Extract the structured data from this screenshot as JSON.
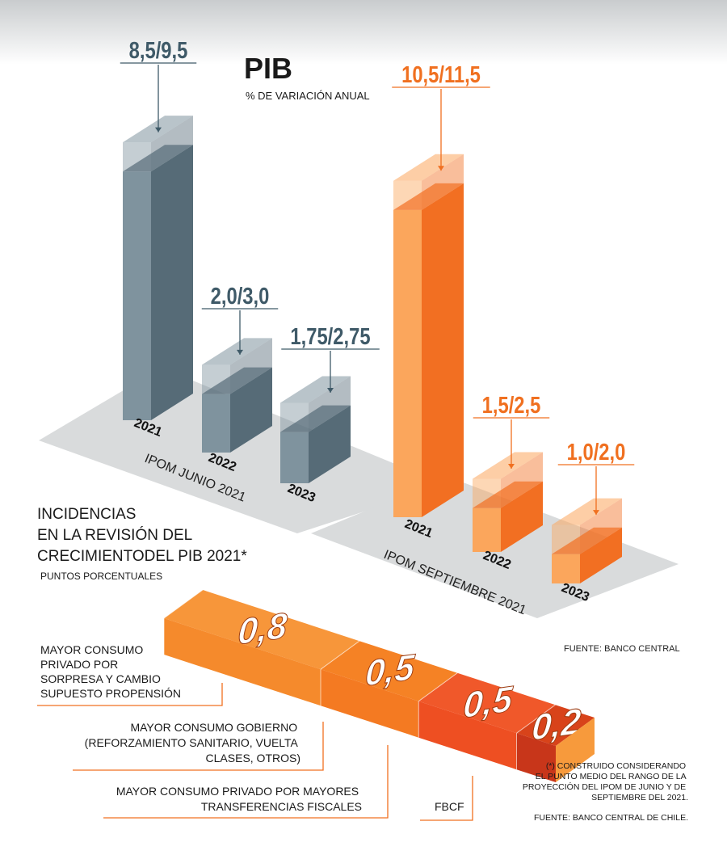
{
  "colors": {
    "junio_front": "#7f939e",
    "junio_side": "#566b77",
    "junio_label": "#3f5a68",
    "sept_front": "#fba65c",
    "sept_side": "#f26f22",
    "sept_label": "#f07020",
    "floor": "#d9dbdc"
  },
  "chart_data": [
    {
      "type": "bar",
      "title": "PIB",
      "subtitle": "% DE VARIACIÓN ANUAL",
      "series": [
        {
          "name": "IPOM JUNIO 2021",
          "categories": [
            "2021",
            "2022",
            "2023"
          ],
          "low": [
            8.5,
            2.0,
            1.75
          ],
          "high": [
            9.5,
            3.0,
            2.75
          ],
          "labels": [
            "8,5/9,5",
            "2,0/3,0",
            "1,75/2,75"
          ]
        },
        {
          "name": "IPOM SEPTIEMBRE 2021",
          "categories": [
            "2021",
            "2022",
            "2023"
          ],
          "low": [
            10.5,
            1.5,
            1.0
          ],
          "high": [
            11.5,
            2.5,
            2.0
          ],
          "labels": [
            "10,5/11,5",
            "1,5/2,5",
            "1,0/2,0"
          ]
        }
      ],
      "source": "FUENTE: BANCO CENTRAL"
    },
    {
      "type": "bar",
      "title": "INCIDENCIAS EN LA REVISIÓN DEL CRECIMIENTODEL PIB 2021*",
      "title_lines": [
        "INCIDENCIAS",
        "EN LA REVISIÓN DEL",
        "CRECIMIENTODEL PIB 2021*"
      ],
      "subtitle": "PUNTOS PORCENTUALES",
      "categories": [
        "MAYOR CONSUMO PRIVADO POR SORPRESA Y CAMBIO SUPUESTO PROPENSIÓN",
        "MAYOR CONSUMO GOBIERNO (REFORZAMIENTO SANITARIO, VUELTA CLASES, OTROS)",
        "MAYOR CONSUMO PRIVADO POR MAYORES TRANSFERENCIAS FISCALES",
        "FBCF"
      ],
      "values": [
        0.8,
        0.5,
        0.5,
        0.2
      ],
      "value_labels": [
        "0,8",
        "0,5",
        "0,5",
        "0,2"
      ],
      "colors": [
        "#f7963a",
        "#f58225",
        "#f0582a",
        "#d8431a"
      ],
      "note": "(*) CONSTRUIDO CONSIDERANDO EL PUNTO MEDIO DEL RANGO DE LA PROYECCIÓN DEL IPOM DE JUNIO Y DE SEPTIEMBRE DEL 2021.",
      "source": "FUENTE: BANCO CENTRAL DE CHILE."
    }
  ],
  "labels": {
    "cat1_lines": [
      "MAYOR CONSUMO",
      "PRIVADO POR",
      "SORPRESA Y CAMBIO",
      "SUPUESTO PROPENSIÓN"
    ],
    "cat2_lines": [
      "MAYOR CONSUMO GOBIERNO",
      "(REFORZAMIENTO SANITARIO, VUELTA",
      "CLASES, OTROS)"
    ],
    "cat3_lines": [
      "MAYOR CONSUMO PRIVADO POR MAYORES",
      "TRANSFERENCIAS FISCALES"
    ],
    "cat4_lines": [
      "FBCF"
    ],
    "note_lines": [
      "(*) CONSTRUIDO CONSIDERANDO",
      "EL PUNTO MEDIO DEL RANGO DE LA",
      "PROYECCIÓN DEL IPOM DE JUNIO Y DE",
      "SEPTIEMBRE DEL 2021."
    ]
  }
}
